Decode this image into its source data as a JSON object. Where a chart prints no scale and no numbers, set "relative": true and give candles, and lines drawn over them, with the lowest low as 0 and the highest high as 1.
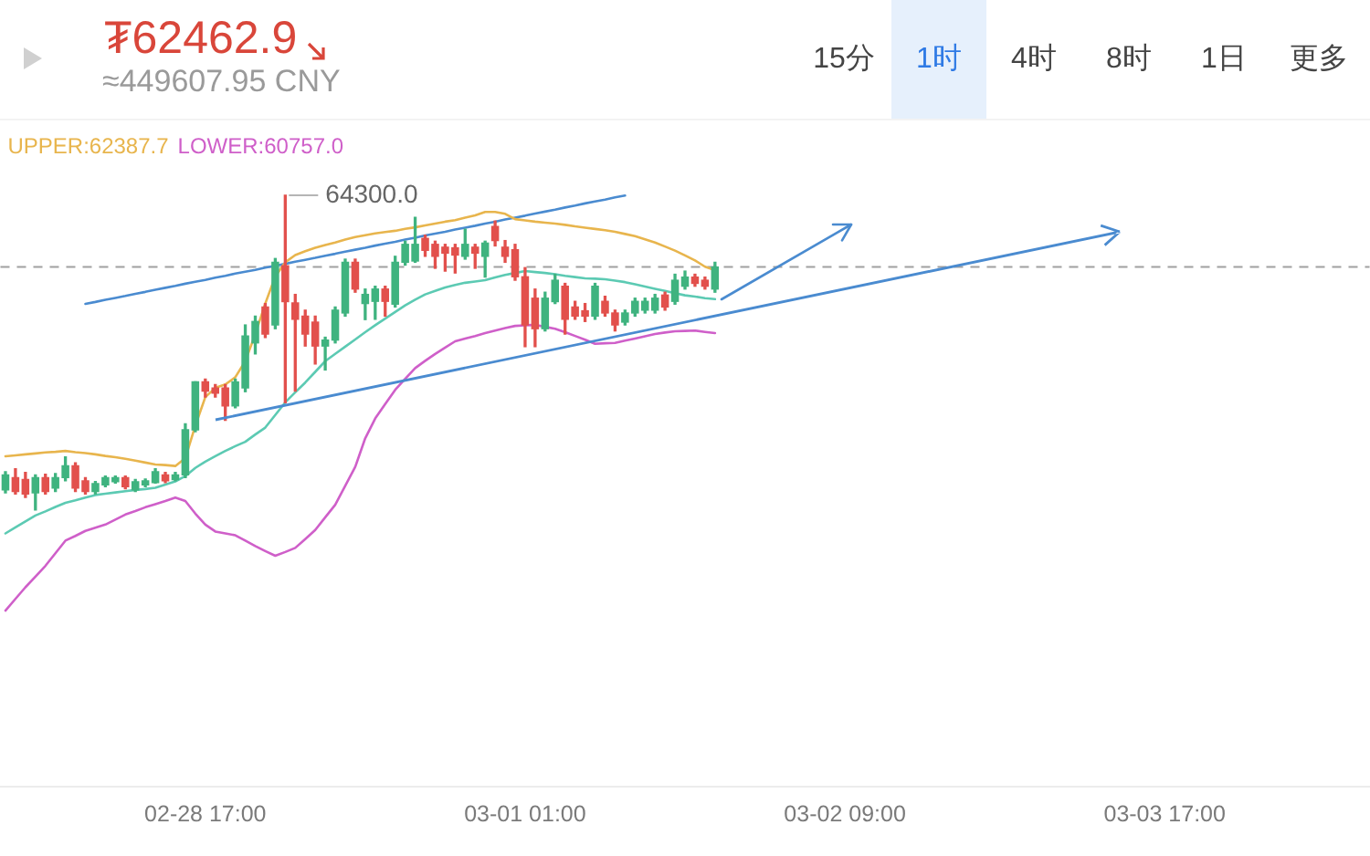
{
  "chart_data": {
    "type": "candlestick",
    "title": "₮62462.9",
    "subtitle": "≈449607.95 CNY",
    "categories": [
      null,
      null,
      null,
      null,
      null,
      null,
      null,
      null,
      null,
      null,
      null,
      null,
      null,
      null,
      null,
      null,
      null,
      null,
      null,
      null,
      "02-28 17:00",
      null,
      null,
      null,
      null,
      null,
      null,
      null,
      null,
      null,
      null,
      null,
      null,
      null,
      null,
      null,
      null,
      null,
      null,
      null,
      null,
      null,
      null,
      null,
      null,
      null,
      null,
      null,
      null,
      null,
      null,
      null,
      "03-01 01:00",
      null,
      null,
      null,
      null,
      null,
      null,
      null,
      null,
      null,
      null,
      null,
      null,
      null,
      null,
      null,
      null,
      null,
      null,
      null,
      null,
      null,
      null,
      null,
      null,
      null,
      null,
      null,
      null,
      null,
      null,
      null,
      "03-02 09:00",
      null,
      null,
      null,
      null,
      null,
      null,
      null,
      null,
      null,
      null,
      null,
      null,
      null,
      null,
      null,
      null,
      null,
      null,
      null,
      null,
      null,
      null,
      null,
      null,
      null,
      null,
      null,
      null,
      null,
      null,
      null,
      "03-03 17:00",
      null,
      null,
      null,
      null,
      null,
      null,
      null,
      null,
      null,
      null,
      null,
      null,
      null,
      null,
      null,
      null,
      null,
      null,
      null,
      null
    ],
    "ohlc": [
      [
        0.064,
        0.122,
        0.055,
        0.112
      ],
      [
        0.103,
        0.131,
        0.051,
        0.059
      ],
      [
        0.097,
        0.12,
        0.04,
        0.051
      ],
      [
        0.055,
        0.112,
        0,
        0.103
      ],
      [
        0.103,
        0.114,
        0.051,
        0.059
      ],
      [
        0.07,
        0.116,
        0.059,
        0.103
      ],
      [
        0.103,
        0.169,
        0.093,
        0.141
      ],
      [
        0.141,
        0.15,
        0.059,
        0.07
      ],
      [
        0.093,
        0.103,
        0.051,
        0.059
      ],
      [
        0.059,
        0.091,
        0.051,
        0.084
      ],
      [
        0.08,
        0.108,
        0.074,
        0.103
      ],
      [
        0.09,
        0.108,
        0.086,
        0.103
      ],
      [
        0.103,
        0.108,
        0.068,
        0.074
      ],
      [
        0.064,
        0.097,
        0.059,
        0.09
      ],
      [
        0.08,
        0.099,
        0.074,
        0.093
      ],
      [
        0.087,
        0.131,
        0.086,
        0.122
      ],
      [
        0.112,
        0.12,
        0.087,
        0.093
      ],
      [
        0.097,
        0.12,
        0.093,
        0.112
      ],
      [
        0.112,
        0.274,
        0.103,
        0.255
      ],
      [
        0.255,
        0.407,
        0.249,
        0.407
      ],
      [
        0.407,
        0.416,
        0.359,
        0.378
      ],
      [
        0.388,
        0.399,
        0.359,
        0.371
      ],
      [
        0.388,
        0.399,
        0.285,
        0.331
      ],
      [
        0.331,
        0.416,
        0.325,
        0.407
      ],
      [
        0.388,
        0.588,
        0.376,
        0.553
      ],
      [
        0.531,
        0.616,
        0.496,
        0.599
      ],
      [
        0.645,
        0.656,
        0.548,
        0.559
      ],
      [
        0.588,
        0.799,
        0.576,
        0.787
      ],
      [
        0.776,
        1,
        0.341,
        0.662
      ],
      [
        0.658,
        0.685,
        0.378,
        0.606
      ],
      [
        0.616,
        0.635,
        0.521,
        0.559
      ],
      [
        0.597,
        0.616,
        0.464,
        0.521
      ],
      [
        0.521,
        0.549,
        0.445,
        0.54
      ],
      [
        0.54,
        0.645,
        0.531,
        0.635
      ],
      [
        0.626,
        0.797,
        0.616,
        0.787
      ],
      [
        0.787,
        0.797,
        0.692,
        0.702
      ],
      [
        0.656,
        0.702,
        0.605,
        0.685
      ],
      [
        0.663,
        0.711,
        0.606,
        0.702
      ],
      [
        0.702,
        0.711,
        0.616,
        0.663
      ],
      [
        0.654,
        0.806,
        0.645,
        0.787
      ],
      [
        0.787,
        0.854,
        0.778,
        0.844
      ],
      [
        0.791,
        0.93,
        0.787,
        0.844
      ],
      [
        0.863,
        0.873,
        0.806,
        0.825
      ],
      [
        0.844,
        0.854,
        0.768,
        0.806
      ],
      [
        0.835,
        0.844,
        0.759,
        0.816
      ],
      [
        0.833,
        0.844,
        0.753,
        0.81
      ],
      [
        0.806,
        0.892,
        0.797,
        0.844
      ],
      [
        0.835,
        0.844,
        0.768,
        0.816
      ],
      [
        0.806,
        0.854,
        0.74,
        0.848
      ],
      [
        0.901,
        0.918,
        0.839,
        0.856
      ],
      [
        0.835,
        0.856,
        0.787,
        0.806
      ],
      [
        0.827,
        0.844,
        0.73,
        0.741
      ],
      [
        0.741,
        0.77,
        0.519,
        0.588
      ],
      [
        0.673,
        0.702,
        0.519,
        0.576
      ],
      [
        0.576,
        0.692,
        0.569,
        0.673
      ],
      [
        0.662,
        0.749,
        0.656,
        0.73
      ],
      [
        0.711,
        0.72,
        0.559,
        0.606
      ],
      [
        0.645,
        0.663,
        0.606,
        0.616
      ],
      [
        0.633,
        0.656,
        0.599,
        0.616
      ],
      [
        0.616,
        0.72,
        0.606,
        0.711
      ],
      [
        0.663,
        0.679,
        0.616,
        0.626
      ],
      [
        0.626,
        0.635,
        0.569,
        0.588
      ],
      [
        0.597,
        0.635,
        0.588,
        0.626
      ],
      [
        0.626,
        0.673,
        0.616,
        0.663
      ],
      [
        0.635,
        0.673,
        0.626,
        0.663
      ],
      [
        0.635,
        0.685,
        0.626,
        0.673
      ],
      [
        0.683,
        0.692,
        0.635,
        0.645
      ],
      [
        0.663,
        0.749,
        0.654,
        0.73
      ],
      [
        0.711,
        0.759,
        0.702,
        0.74
      ],
      [
        0.74,
        0.749,
        0.711,
        0.72
      ],
      [
        0.73,
        0.74,
        0.702,
        0.711
      ],
      [
        0.702,
        0.787,
        0.692,
        0.772
      ],
      null,
      null,
      null,
      null,
      null,
      null,
      null,
      null,
      null,
      null,
      null,
      null,
      null,
      null,
      null,
      null,
      null,
      null,
      null,
      null,
      null,
      null,
      null,
      null,
      null,
      null,
      null,
      null,
      null,
      null,
      null,
      null,
      null,
      null,
      null,
      null,
      null,
      null,
      null,
      null,
      null,
      null,
      null,
      null,
      null,
      null,
      null,
      null,
      null,
      null,
      null,
      null,
      null,
      null,
      null,
      null,
      null,
      null,
      null,
      null,
      null,
      null,
      null,
      null,
      null
    ],
    "colors": [
      "#3fb37f",
      "#e2504c",
      "#e2504c",
      "#3fb37f",
      "#e2504c",
      "#3fb37f",
      "#3fb37f",
      "#e2504c",
      "#e2504c",
      "#3fb37f",
      "#3fb37f",
      "#3fb37f",
      "#e2504c",
      "#3fb37f",
      "#3fb37f",
      "#3fb37f",
      "#e2504c",
      "#3fb37f",
      "#3fb37f",
      "#3fb37f",
      "#e2504c",
      "#e2504c",
      "#e2504c",
      "#3fb37f",
      "#3fb37f",
      "#3fb37f",
      "#e2504c",
      "#3fb37f",
      "#e2504c",
      "#e2504c",
      "#e2504c",
      "#e2504c",
      "#3fb37f",
      "#3fb37f",
      "#3fb37f",
      "#e2504c",
      "#3fb37f",
      "#3fb37f",
      "#e2504c",
      "#3fb37f",
      "#3fb37f",
      "#3fb37f",
      "#e2504c",
      "#e2504c",
      "#e2504c",
      "#e2504c",
      "#3fb37f",
      "#e2504c",
      "#3fb37f",
      "#e2504c",
      "#e2504c",
      "#e2504c",
      "#e2504c",
      "#e2504c",
      "#3fb37f",
      "#3fb37f",
      "#e2504c",
      "#e2504c",
      "#e2504c",
      "#3fb37f",
      "#e2504c",
      "#e2504c",
      "#3fb37f",
      "#3fb37f",
      "#3fb37f",
      "#3fb37f",
      "#e2504c",
      "#3fb37f",
      "#3fb37f",
      "#e2504c",
      "#e2504c",
      "#3fb37f",
      null,
      null,
      null,
      null,
      null,
      null,
      null,
      null,
      null,
      null,
      null,
      null,
      null,
      null,
      null,
      null,
      null,
      null,
      null,
      null,
      null,
      null,
      null,
      null,
      null,
      null,
      null,
      null,
      null,
      null,
      null,
      null,
      null,
      null,
      null,
      null,
      null,
      null,
      null,
      null,
      null,
      null,
      null,
      null,
      null,
      null,
      null,
      null,
      null,
      null,
      null,
      null,
      null,
      null,
      null,
      null,
      null,
      null,
      null,
      null,
      null,
      null,
      null,
      null,
      null
    ],
    "relative": true,
    "series": [
      {
        "type": "line",
        "name": "UPPER:62387.7",
        "color": "#e8b54d",
        "values": [
          0.171,
          0.174,
          0.177,
          0.18,
          0.183,
          0.185,
          0.188,
          0.184,
          0.181,
          0.177,
          0.172,
          0.168,
          0.163,
          0.157,
          0.151,
          0.145,
          0.143,
          0.14,
          0.165,
          0.268,
          0.359,
          0.388,
          0.399,
          0.422,
          0.473,
          0.559,
          0.656,
          0.742,
          0.787,
          0.81,
          0.822,
          0.833,
          0.842,
          0.85,
          0.859,
          0.867,
          0.873,
          0.879,
          0.883,
          0.887,
          0.893,
          0.898,
          0.904,
          0.91,
          0.916,
          0.921,
          0.929,
          0.936,
          0.947,
          0.947,
          0.941,
          0.924,
          0.92,
          0.916,
          0.913,
          0.91,
          0.906,
          0.901,
          0.897,
          0.893,
          0.889,
          0.884,
          0.877,
          0.87,
          0.86,
          0.85,
          0.837,
          0.824,
          0.809,
          0.793,
          0.773,
          0.762,
          null,
          null,
          null,
          null,
          null,
          null,
          null,
          null,
          null,
          null,
          null,
          null,
          null,
          null,
          null,
          null,
          null,
          null,
          null,
          null,
          null,
          null,
          null,
          null,
          null,
          null,
          null,
          null,
          null,
          null,
          null,
          null,
          null,
          null,
          null,
          null,
          null,
          null,
          null,
          null,
          null,
          null,
          null,
          null,
          null,
          null,
          null,
          null,
          null,
          null,
          null,
          null,
          null,
          null,
          null,
          null,
          null,
          null,
          null,
          null,
          null,
          null,
          null,
          null,
          null
        ]
      },
      {
        "type": "line",
        "color": "#5ccab3",
        "values": [
          -0.074,
          -0.055,
          -0.036,
          -0.017,
          -0.004,
          0.01,
          0.023,
          0.031,
          0.04,
          0.048,
          0.052,
          0.056,
          0.06,
          0.064,
          0.067,
          0.071,
          0.081,
          0.091,
          0.108,
          0.134,
          0.154,
          0.171,
          0.188,
          0.203,
          0.217,
          0.24,
          0.262,
          0.302,
          0.342,
          0.374,
          0.405,
          0.439,
          0.473,
          0.496,
          0.519,
          0.542,
          0.565,
          0.587,
          0.608,
          0.629,
          0.65,
          0.668,
          0.685,
          0.696,
          0.707,
          0.715,
          0.722,
          0.726,
          0.73,
          0.739,
          0.747,
          0.753,
          0.759,
          0.756,
          0.753,
          0.749,
          0.744,
          0.74,
          0.736,
          0.735,
          0.733,
          0.729,
          0.724,
          0.717,
          0.71,
          0.703,
          0.696,
          0.689,
          0.682,
          0.678,
          0.673,
          0.67,
          null,
          null,
          null,
          null,
          null,
          null,
          null,
          null,
          null,
          null,
          null,
          null,
          null,
          null,
          null,
          null,
          null,
          null,
          null,
          null,
          null,
          null,
          null,
          null,
          null,
          null,
          null,
          null,
          null,
          null,
          null,
          null,
          null,
          null,
          null,
          null,
          null,
          null,
          null,
          null,
          null,
          null,
          null,
          null,
          null,
          null,
          null,
          null,
          null,
          null,
          null,
          null,
          null,
          null,
          null,
          null,
          null,
          null,
          null,
          null,
          null,
          null,
          null,
          null,
          null
        ]
      },
      {
        "type": "line",
        "name": "LOWER:60757.0",
        "color": "#cf5fc9",
        "values": [
          -0.319,
          -0.282,
          -0.245,
          -0.211,
          -0.177,
          -0.137,
          -0.097,
          -0.082,
          -0.066,
          -0.056,
          -0.046,
          -0.03,
          -0.014,
          -0.003,
          0.009,
          0.019,
          0.029,
          0.04,
          0.029,
          -0.011,
          -0.046,
          -0.068,
          -0.074,
          -0.08,
          -0.097,
          -0.114,
          -0.13,
          -0.145,
          -0.133,
          -0.12,
          -0.092,
          -0.063,
          -0.023,
          0.017,
          0.077,
          0.137,
          0.228,
          0.291,
          0.337,
          0.382,
          0.417,
          0.451,
          0.474,
          0.496,
          0.516,
          0.536,
          0.545,
          0.553,
          0.562,
          0.57,
          0.578,
          0.585,
          0.587,
          0.588,
          0.582,
          0.576,
          0.565,
          0.553,
          0.541,
          0.528,
          0.53,
          0.531,
          0.538,
          0.545,
          0.552,
          0.559,
          0.564,
          0.568,
          0.569,
          0.57,
          0.566,
          0.562,
          null,
          null,
          null,
          null,
          null,
          null,
          null,
          null,
          null,
          null,
          null,
          null,
          null,
          null,
          null,
          null,
          null,
          null,
          null,
          null,
          null,
          null,
          null,
          null,
          null,
          null,
          null,
          null,
          null,
          null,
          null,
          null,
          null,
          null,
          null,
          null,
          null,
          null,
          null,
          null,
          null,
          null,
          null,
          null,
          null,
          null,
          null,
          null,
          null,
          null,
          null,
          null,
          null,
          null,
          null,
          null,
          null,
          null,
          null,
          null,
          null,
          null,
          null,
          null,
          null
        ]
      },
      {
        "type": "line",
        "color": "#4a8bd0",
        "values": [
          null,
          null,
          null,
          null,
          null,
          null,
          null,
          null,
          0.655,
          0.661,
          0.668,
          0.674,
          0.68,
          0.687,
          0.693,
          0.7,
          0.706,
          0.712,
          0.719,
          0.725,
          0.731,
          0.738,
          0.744,
          0.751,
          0.757,
          0.763,
          0.77,
          0.776,
          0.782,
          0.789,
          0.795,
          0.801,
          0.808,
          0.814,
          0.821,
          0.827,
          0.833,
          0.84,
          0.846,
          0.852,
          0.859,
          0.865,
          0.872,
          0.878,
          0.884,
          0.891,
          0.897,
          0.903,
          0.91,
          0.916,
          0.923,
          0.929,
          0.935,
          0.942,
          0.948,
          0.954,
          0.961,
          0.967,
          0.974,
          0.98,
          0.986,
          0.993,
          0.999,
          null,
          null,
          null,
          null,
          null,
          null,
          null,
          null,
          null,
          null,
          null,
          null,
          null,
          null,
          null,
          null,
          null,
          null,
          null,
          null,
          null,
          null,
          null,
          null,
          null,
          null,
          null,
          null,
          null,
          null,
          null,
          null,
          null,
          null,
          null,
          null,
          null,
          null,
          null,
          null,
          null,
          null,
          null,
          null,
          null,
          null,
          null,
          null,
          null,
          null,
          null,
          null,
          null,
          null,
          null,
          null,
          null,
          null,
          null,
          null,
          null,
          null,
          null,
          null,
          null,
          null,
          null,
          null,
          null,
          null,
          null,
          null,
          null,
          null
        ]
      }
    ],
    "ref_lines": [
      {
        "axis": "y",
        "value": 0.772,
        "color": "#a0a0a0",
        "line_style": "dashed"
      }
    ],
    "annotations": [
      "64300.0",
      "15分",
      "1时",
      "4时",
      "8时",
      "1日",
      "更多"
    ],
    "legend": "top left"
  }
}
